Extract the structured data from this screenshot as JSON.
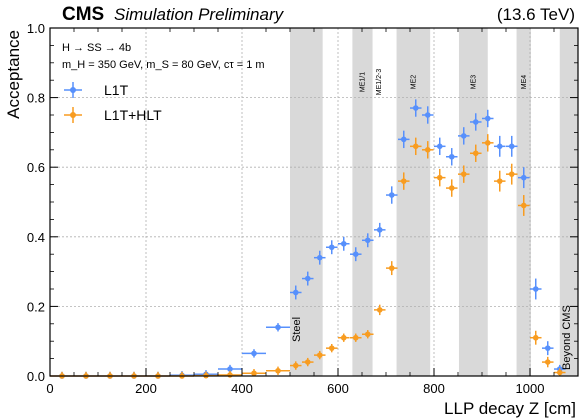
{
  "header": {
    "experiment": "CMS",
    "status": "Simulation Preliminary",
    "energy": "(13.6 TeV)"
  },
  "info": {
    "process": "H → SS → 4b",
    "masses": "m_H = 350 GeV, m_S = 80 GeV, cτ = 1 m"
  },
  "colors": {
    "l1t": "#5790fc",
    "hlt": "#f89c20",
    "region_fill": "#d9d9d9",
    "grid": "#b0b0b0"
  },
  "chart_data": {
    "type": "scatter",
    "xlabel": "LLP decay Z [cm]",
    "ylabel": "Acceptance",
    "xlim": [
      0,
      1100
    ],
    "ylim": [
      0,
      1.0
    ],
    "xticks": [
      0,
      200,
      400,
      600,
      800,
      1000
    ],
    "yticks": [
      0.0,
      0.2,
      0.4,
      0.6,
      0.8,
      1.0
    ],
    "grid": true,
    "legend_position": "top-left",
    "regions": [
      {
        "label": "Steel",
        "x0": 500,
        "x1": 568,
        "label_style": "big"
      },
      {
        "label": "ME1/1",
        "x0": 630,
        "x1": 672,
        "label_style": "small"
      },
      {
        "label": "ME1/2-3",
        "x0": 672,
        "x1": 672,
        "label_style": "small",
        "label_x": 685
      },
      {
        "label": "ME2",
        "x0": 722,
        "x1": 792,
        "label_style": "small"
      },
      {
        "label": "ME3",
        "x0": 852,
        "x1": 912,
        "label_style": "small"
      },
      {
        "label": "ME4",
        "x0": 972,
        "x1": 1002,
        "label_style": "small"
      },
      {
        "label": "Beyond CMS",
        "x0": 1062,
        "x1": 1100,
        "label_style": "big"
      }
    ],
    "series": [
      {
        "name": "L1T",
        "color": "#5790fc",
        "points": [
          {
            "x": 25,
            "y": 0.0,
            "xerr": 25,
            "yerr": 0.003
          },
          {
            "x": 75,
            "y": 0.0,
            "xerr": 25,
            "yerr": 0.003
          },
          {
            "x": 125,
            "y": 0.0,
            "xerr": 25,
            "yerr": 0.003
          },
          {
            "x": 175,
            "y": 0.0,
            "xerr": 25,
            "yerr": 0.003
          },
          {
            "x": 225,
            "y": 0.0,
            "xerr": 25,
            "yerr": 0.003
          },
          {
            "x": 275,
            "y": 0.002,
            "xerr": 25,
            "yerr": 0.003
          },
          {
            "x": 325,
            "y": 0.005,
            "xerr": 25,
            "yerr": 0.004
          },
          {
            "x": 375,
            "y": 0.02,
            "xerr": 25,
            "yerr": 0.006
          },
          {
            "x": 425,
            "y": 0.065,
            "xerr": 25,
            "yerr": 0.008
          },
          {
            "x": 475,
            "y": 0.14,
            "xerr": 25,
            "yerr": 0.01
          },
          {
            "x": 512,
            "y": 0.24,
            "xerr": 12,
            "yerr": 0.02
          },
          {
            "x": 537,
            "y": 0.28,
            "xerr": 12,
            "yerr": 0.02
          },
          {
            "x": 562,
            "y": 0.34,
            "xerr": 12,
            "yerr": 0.02
          },
          {
            "x": 587,
            "y": 0.37,
            "xerr": 12,
            "yerr": 0.02
          },
          {
            "x": 612,
            "y": 0.38,
            "xerr": 12,
            "yerr": 0.02
          },
          {
            "x": 637,
            "y": 0.35,
            "xerr": 12,
            "yerr": 0.02
          },
          {
            "x": 662,
            "y": 0.39,
            "xerr": 12,
            "yerr": 0.02
          },
          {
            "x": 687,
            "y": 0.42,
            "xerr": 12,
            "yerr": 0.02
          },
          {
            "x": 712,
            "y": 0.52,
            "xerr": 12,
            "yerr": 0.025
          },
          {
            "x": 737,
            "y": 0.68,
            "xerr": 12,
            "yerr": 0.025
          },
          {
            "x": 762,
            "y": 0.77,
            "xerr": 12,
            "yerr": 0.025
          },
          {
            "x": 787,
            "y": 0.75,
            "xerr": 12,
            "yerr": 0.025
          },
          {
            "x": 812,
            "y": 0.66,
            "xerr": 12,
            "yerr": 0.025
          },
          {
            "x": 837,
            "y": 0.63,
            "xerr": 12,
            "yerr": 0.025
          },
          {
            "x": 862,
            "y": 0.69,
            "xerr": 12,
            "yerr": 0.025
          },
          {
            "x": 887,
            "y": 0.73,
            "xerr": 12,
            "yerr": 0.025
          },
          {
            "x": 912,
            "y": 0.74,
            "xerr": 12,
            "yerr": 0.025
          },
          {
            "x": 937,
            "y": 0.66,
            "xerr": 12,
            "yerr": 0.03
          },
          {
            "x": 962,
            "y": 0.66,
            "xerr": 12,
            "yerr": 0.03
          },
          {
            "x": 987,
            "y": 0.57,
            "xerr": 12,
            "yerr": 0.03
          },
          {
            "x": 1012,
            "y": 0.25,
            "xerr": 12,
            "yerr": 0.03
          },
          {
            "x": 1037,
            "y": 0.08,
            "xerr": 12,
            "yerr": 0.02
          },
          {
            "x": 1062,
            "y": 0.02,
            "xerr": 12,
            "yerr": 0.01
          }
        ]
      },
      {
        "name": "L1T+HLT",
        "color": "#f89c20",
        "points": [
          {
            "x": 25,
            "y": 0.0,
            "xerr": 25,
            "yerr": 0.002
          },
          {
            "x": 75,
            "y": 0.0,
            "xerr": 25,
            "yerr": 0.002
          },
          {
            "x": 125,
            "y": 0.0,
            "xerr": 25,
            "yerr": 0.002
          },
          {
            "x": 175,
            "y": 0.0,
            "xerr": 25,
            "yerr": 0.002
          },
          {
            "x": 225,
            "y": 0.0,
            "xerr": 25,
            "yerr": 0.002
          },
          {
            "x": 275,
            "y": 0.0,
            "xerr": 25,
            "yerr": 0.002
          },
          {
            "x": 325,
            "y": 0.001,
            "xerr": 25,
            "yerr": 0.002
          },
          {
            "x": 375,
            "y": 0.003,
            "xerr": 25,
            "yerr": 0.003
          },
          {
            "x": 425,
            "y": 0.008,
            "xerr": 25,
            "yerr": 0.003
          },
          {
            "x": 475,
            "y": 0.015,
            "xerr": 25,
            "yerr": 0.004
          },
          {
            "x": 512,
            "y": 0.03,
            "xerr": 12,
            "yerr": 0.008
          },
          {
            "x": 537,
            "y": 0.04,
            "xerr": 12,
            "yerr": 0.008
          },
          {
            "x": 562,
            "y": 0.06,
            "xerr": 12,
            "yerr": 0.008
          },
          {
            "x": 587,
            "y": 0.08,
            "xerr": 12,
            "yerr": 0.01
          },
          {
            "x": 612,
            "y": 0.11,
            "xerr": 12,
            "yerr": 0.01
          },
          {
            "x": 637,
            "y": 0.11,
            "xerr": 12,
            "yerr": 0.01
          },
          {
            "x": 662,
            "y": 0.12,
            "xerr": 12,
            "yerr": 0.01
          },
          {
            "x": 687,
            "y": 0.19,
            "xerr": 12,
            "yerr": 0.015
          },
          {
            "x": 712,
            "y": 0.31,
            "xerr": 12,
            "yerr": 0.02
          },
          {
            "x": 737,
            "y": 0.56,
            "xerr": 12,
            "yerr": 0.025
          },
          {
            "x": 762,
            "y": 0.66,
            "xerr": 12,
            "yerr": 0.025
          },
          {
            "x": 787,
            "y": 0.65,
            "xerr": 12,
            "yerr": 0.025
          },
          {
            "x": 812,
            "y": 0.57,
            "xerr": 12,
            "yerr": 0.025
          },
          {
            "x": 837,
            "y": 0.54,
            "xerr": 12,
            "yerr": 0.025
          },
          {
            "x": 862,
            "y": 0.58,
            "xerr": 12,
            "yerr": 0.025
          },
          {
            "x": 887,
            "y": 0.64,
            "xerr": 12,
            "yerr": 0.025
          },
          {
            "x": 912,
            "y": 0.67,
            "xerr": 12,
            "yerr": 0.025
          },
          {
            "x": 937,
            "y": 0.56,
            "xerr": 12,
            "yerr": 0.03
          },
          {
            "x": 962,
            "y": 0.58,
            "xerr": 12,
            "yerr": 0.03
          },
          {
            "x": 987,
            "y": 0.49,
            "xerr": 12,
            "yerr": 0.03
          },
          {
            "x": 1012,
            "y": 0.11,
            "xerr": 12,
            "yerr": 0.02
          },
          {
            "x": 1037,
            "y": 0.04,
            "xerr": 12,
            "yerr": 0.015
          },
          {
            "x": 1062,
            "y": 0.01,
            "xerr": 12,
            "yerr": 0.008
          }
        ]
      }
    ]
  }
}
